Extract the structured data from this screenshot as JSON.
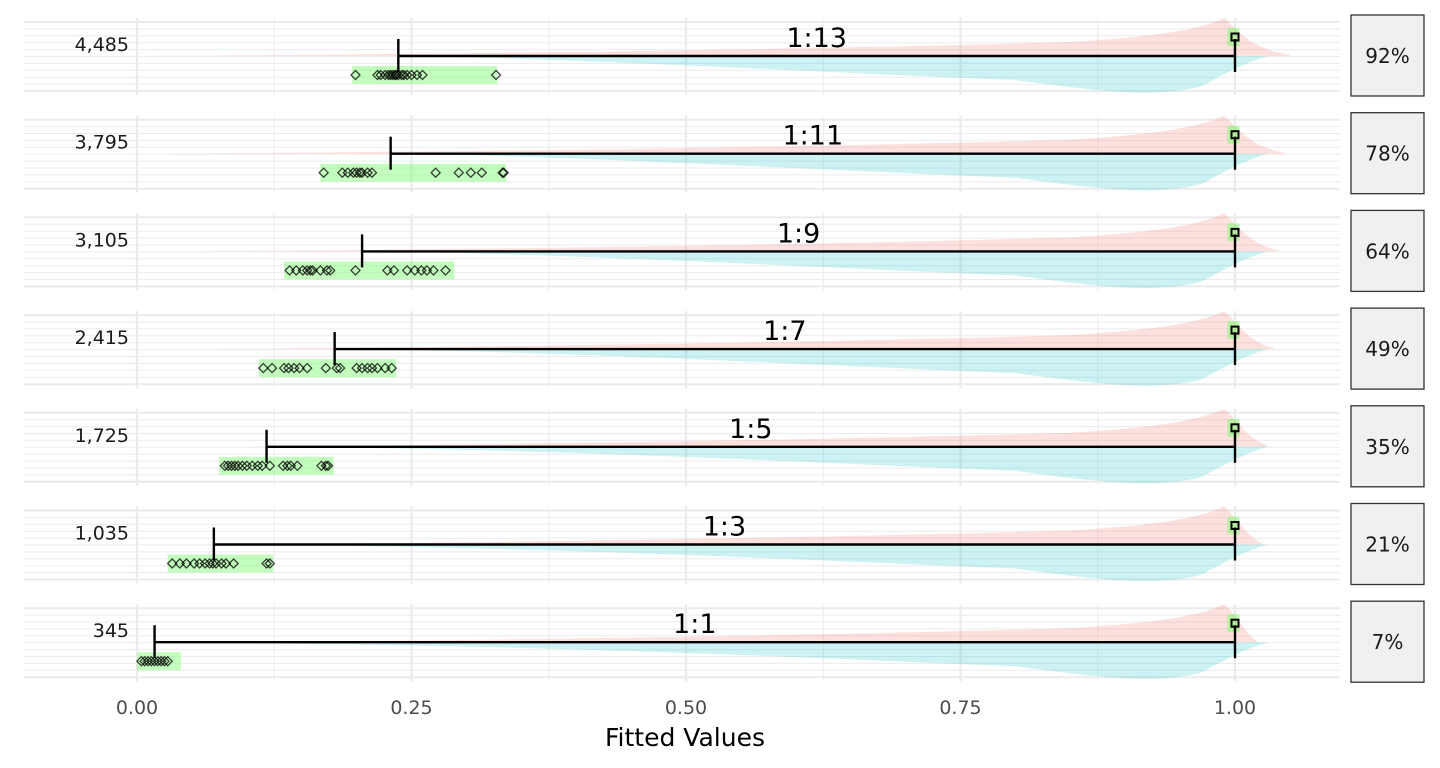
{
  "chart_data": {
    "type": "scatter",
    "xlabel": "Fitted Values",
    "xlim": [
      -0.05,
      1.1
    ],
    "x_ticks": [
      {
        "value": 0.0,
        "label": "0.00"
      },
      {
        "value": 0.25,
        "label": "0.25"
      },
      {
        "value": 0.5,
        "label": "0.50"
      },
      {
        "value": 0.75,
        "label": "0.75"
      },
      {
        "value": 1.0,
        "label": "1.00"
      }
    ],
    "x_minor": [
      0.125,
      0.375,
      0.625,
      0.875
    ],
    "grid": true,
    "colors": {
      "class_a_density": "#f8766d",
      "class_b_density": "#00bfc4",
      "range_box": "#7cfc6e",
      "marker": "#000000",
      "strip_bg": "#f0f0f0"
    },
    "panels": [
      {
        "count": "4,485",
        "ratio": "1:13",
        "percent": "92%",
        "low_mean": 0.238,
        "high_mean": 1.0,
        "box_min": 0.196,
        "box_max": 0.328,
        "low_points": [
          0.199,
          0.219,
          0.222,
          0.226,
          0.229,
          0.231,
          0.233,
          0.235,
          0.236,
          0.238,
          0.241,
          0.243,
          0.246,
          0.25,
          0.255,
          0.26,
          0.327
        ]
      },
      {
        "count": "3,795",
        "ratio": "1:11",
        "percent": "78%",
        "low_mean": 0.231,
        "high_mean": 1.0,
        "box_min": 0.167,
        "box_max": 0.336,
        "low_points": [
          0.17,
          0.187,
          0.192,
          0.197,
          0.2,
          0.203,
          0.205,
          0.21,
          0.214,
          0.272,
          0.293,
          0.304,
          0.314,
          0.333,
          0.334
        ]
      },
      {
        "count": "3,105",
        "ratio": "1:9",
        "percent": "64%",
        "low_mean": 0.205,
        "high_mean": 1.0,
        "box_min": 0.134,
        "box_max": 0.289,
        "low_points": [
          0.139,
          0.145,
          0.151,
          0.155,
          0.158,
          0.16,
          0.167,
          0.173,
          0.176,
          0.199,
          0.228,
          0.234,
          0.246,
          0.253,
          0.259,
          0.264,
          0.27,
          0.281
        ]
      },
      {
        "count": "2,415",
        "ratio": "1:7",
        "percent": "49%",
        "low_mean": 0.18,
        "high_mean": 1.0,
        "box_min": 0.111,
        "box_max": 0.236,
        "low_points": [
          0.115,
          0.123,
          0.134,
          0.138,
          0.143,
          0.148,
          0.155,
          0.172,
          0.182,
          0.185,
          0.2,
          0.205,
          0.21,
          0.214,
          0.219,
          0.226,
          0.232
        ]
      },
      {
        "count": "1,725",
        "ratio": "1:5",
        "percent": "35%",
        "low_mean": 0.118,
        "high_mean": 1.0,
        "box_min": 0.075,
        "box_max": 0.179,
        "low_points": [
          0.08,
          0.083,
          0.086,
          0.089,
          0.092,
          0.096,
          0.1,
          0.105,
          0.11,
          0.114,
          0.121,
          0.133,
          0.137,
          0.14,
          0.146,
          0.168,
          0.172,
          0.174
        ]
      },
      {
        "count": "1,035",
        "ratio": "1:3",
        "percent": "21%",
        "low_mean": 0.07,
        "high_mean": 1.0,
        "box_min": 0.028,
        "box_max": 0.124,
        "low_points": [
          0.032,
          0.039,
          0.045,
          0.052,
          0.057,
          0.062,
          0.066,
          0.069,
          0.072,
          0.077,
          0.081,
          0.088,
          0.118,
          0.121
        ]
      },
      {
        "count": "345",
        "ratio": "1:1",
        "percent": "7%",
        "low_mean": 0.016,
        "high_mean": 1.0,
        "box_min": 0.0,
        "box_max": 0.04,
        "low_points": [
          0.004,
          0.007,
          0.01,
          0.013,
          0.016,
          0.019,
          0.022,
          0.025,
          0.028
        ]
      }
    ]
  }
}
